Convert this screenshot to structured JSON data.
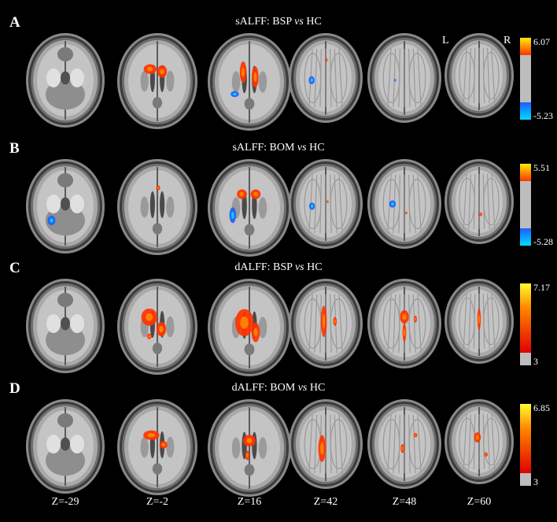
{
  "panels": [
    {
      "letter": "A",
      "title_main": "sALFF: BSP ",
      "title_vs": "vs",
      "title_tail": " HC",
      "scale": {
        "type": "bipolar",
        "max": "6.07",
        "min": "-5.23"
      }
    },
    {
      "letter": "B",
      "title_main": "sALFF: BOM ",
      "title_vs": "vs",
      "title_tail": " HC",
      "scale": {
        "type": "bipolar",
        "max": "5.51",
        "min": "-5.28"
      }
    },
    {
      "letter": "C",
      "title_main": "dALFF: BSP ",
      "title_vs": "vs",
      "title_tail": " HC",
      "scale": {
        "type": "positive",
        "max": "7.17",
        "min": "3"
      }
    },
    {
      "letter": "D",
      "title_main": "dALFF: BOM ",
      "title_vs": "vs",
      "title_tail": " HC",
      "scale": {
        "type": "positive",
        "max": "6.85",
        "min": "3"
      }
    }
  ],
  "orientation": {
    "left": "L",
    "right": "R"
  },
  "slice_labels": [
    "Z=-29",
    "Z=-2",
    "Z=16",
    "Z=42",
    "Z=48",
    "Z=60"
  ],
  "colors": {
    "hot": "#ff3300",
    "hot_mid": "#ff8800",
    "hot_high": "#ffee00",
    "cold": "#1e5cff",
    "cold_high": "#00ddff",
    "neutral": "#bdbdbd"
  }
}
